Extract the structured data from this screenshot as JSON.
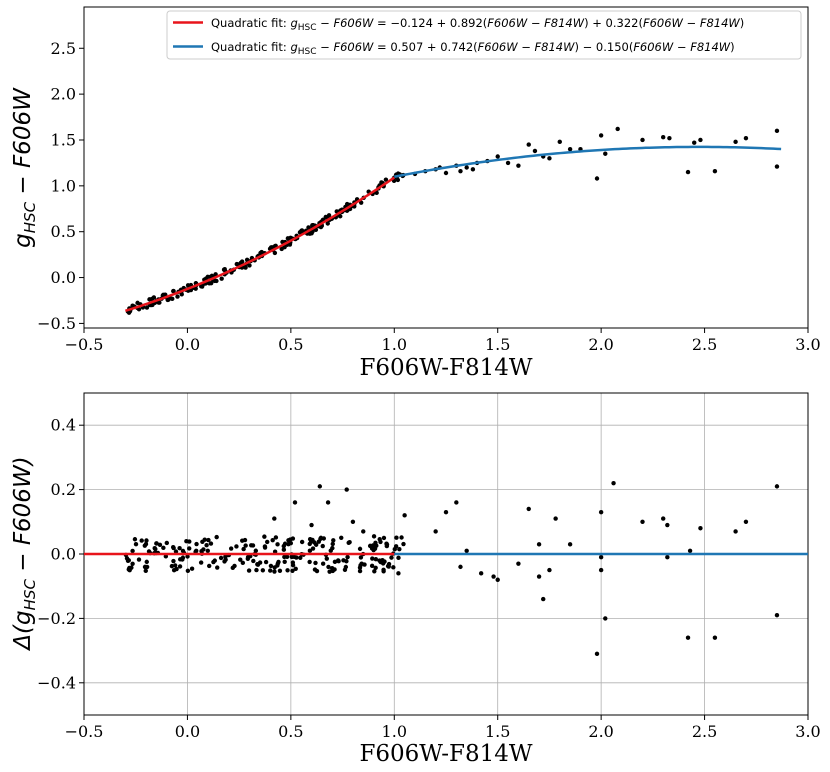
{
  "chart_data": [
    {
      "type": "scatter",
      "xlabel": "F606W-F814W",
      "ylabel": "g_HSC − F606W",
      "xlim": [
        -0.5,
        3.0
      ],
      "ylim": [
        -0.55,
        2.95
      ],
      "xticks": [
        -0.5,
        0.0,
        0.5,
        1.0,
        1.5,
        2.0,
        2.5,
        3.0
      ],
      "xtick_labels": [
        "−0.5",
        "0.0",
        "0.5",
        "1.0",
        "1.5",
        "2.0",
        "2.5",
        "3.0"
      ],
      "yticks": [
        -0.5,
        0.0,
        0.5,
        1.0,
        1.5,
        2.0,
        2.5
      ],
      "ytick_labels": [
        "−0.5",
        "0.0",
        "0.5",
        "1.0",
        "1.5",
        "2.0",
        "2.5"
      ],
      "grid": false,
      "legend_position": "top-right",
      "series": [
        {
          "name": "Quadratic fit: g_HSC − F606W = −0.124 + 0.892(F606W − F814W) + 0.322(F606W − F814W)",
          "type": "line",
          "color": "#e8141b",
          "coefficients": [
            -0.124,
            0.892,
            0.322
          ],
          "x_range": [
            -0.3,
            1.0
          ]
        },
        {
          "name": "Quadratic fit: g_HSC − F606W = 0.507 + 0.742(F606W − F814W) − 0.150(F606W − F814W)",
          "type": "line",
          "color": "#1f77b4",
          "coefficients": [
            0.507,
            0.742,
            -0.15
          ],
          "x_range": [
            1.0,
            2.87
          ]
        },
        {
          "type": "scatter",
          "color": "#000000",
          "points": [
            [
              1.1,
              1.13
            ],
            [
              1.15,
              1.16
            ],
            [
              1.2,
              1.18
            ],
            [
              1.22,
              1.2
            ],
            [
              1.25,
              1.14
            ],
            [
              1.3,
              1.22
            ],
            [
              1.32,
              1.16
            ],
            [
              1.35,
              1.2
            ],
            [
              1.38,
              1.18
            ],
            [
              1.4,
              1.25
            ],
            [
              1.45,
              1.27
            ],
            [
              1.5,
              1.32
            ],
            [
              1.55,
              1.25
            ],
            [
              1.6,
              1.22
            ],
            [
              1.65,
              1.45
            ],
            [
              1.68,
              1.38
            ],
            [
              1.72,
              1.32
            ],
            [
              1.75,
              1.3
            ],
            [
              1.8,
              1.48
            ],
            [
              1.85,
              1.4
            ],
            [
              1.9,
              1.4
            ],
            [
              1.98,
              1.08
            ],
            [
              2.0,
              1.55
            ],
            [
              2.02,
              1.35
            ],
            [
              2.08,
              1.62
            ],
            [
              2.2,
              1.5
            ],
            [
              2.3,
              1.53
            ],
            [
              2.33,
              1.52
            ],
            [
              2.42,
              1.15
            ],
            [
              2.45,
              1.47
            ],
            [
              2.48,
              1.5
            ],
            [
              2.55,
              1.16
            ],
            [
              2.65,
              1.48
            ],
            [
              2.7,
              1.52
            ],
            [
              2.85,
              1.6
            ],
            [
              2.85,
              1.21
            ]
          ]
        }
      ]
    },
    {
      "type": "scatter",
      "xlabel": "F606W-F814W",
      "ylabel": "Δ(g_HSC − F606W)",
      "xlim": [
        -0.5,
        3.0
      ],
      "ylim": [
        -0.5,
        0.5
      ],
      "xticks": [
        -0.5,
        0.0,
        0.5,
        1.0,
        1.5,
        2.0,
        2.5,
        3.0
      ],
      "xtick_labels": [
        "−0.5",
        "0.0",
        "0.5",
        "1.0",
        "1.5",
        "2.0",
        "2.5",
        "3.0"
      ],
      "yticks": [
        -0.4,
        -0.2,
        0.0,
        0.2,
        0.4
      ],
      "ytick_labels": [
        "−0.4",
        "−0.2",
        "0.0",
        "0.2",
        "0.4"
      ],
      "grid": true,
      "series": [
        {
          "type": "line",
          "color": "#e8141b",
          "x": [
            -0.5,
            1.0
          ],
          "y": [
            0.0,
            0.0
          ]
        },
        {
          "type": "line",
          "color": "#1f77b4",
          "x": [
            1.0,
            3.0
          ],
          "y": [
            0.0,
            0.0
          ]
        },
        {
          "type": "scatter",
          "color": "#000000",
          "points": [
            [
              0.42,
              0.11
            ],
            [
              0.52,
              0.16
            ],
            [
              0.64,
              0.21
            ],
            [
              0.68,
              0.16
            ],
            [
              0.77,
              0.2
            ],
            [
              0.8,
              0.1
            ],
            [
              0.6,
              0.09
            ],
            [
              0.85,
              0.07
            ],
            [
              0.95,
              0.05
            ],
            [
              1.02,
              -0.06
            ],
            [
              1.05,
              0.12
            ],
            [
              1.2,
              0.07
            ],
            [
              1.25,
              0.13
            ],
            [
              1.3,
              0.16
            ],
            [
              1.32,
              -0.04
            ],
            [
              1.35,
              0.01
            ],
            [
              1.42,
              -0.06
            ],
            [
              1.48,
              -0.07
            ],
            [
              1.5,
              -0.08
            ],
            [
              1.6,
              -0.03
            ],
            [
              1.65,
              0.14
            ],
            [
              1.7,
              0.03
            ],
            [
              1.7,
              -0.07
            ],
            [
              1.72,
              -0.14
            ],
            [
              1.75,
              -0.05
            ],
            [
              1.78,
              0.11
            ],
            [
              1.85,
              0.03
            ],
            [
              1.98,
              -0.31
            ],
            [
              2.0,
              0.13
            ],
            [
              2.0,
              -0.05
            ],
            [
              2.02,
              -0.2
            ],
            [
              2.0,
              -0.01
            ],
            [
              2.06,
              0.22
            ],
            [
              2.2,
              0.1
            ],
            [
              2.3,
              0.11
            ],
            [
              2.32,
              0.09
            ],
            [
              2.32,
              -0.01
            ],
            [
              2.42,
              -0.26
            ],
            [
              2.43,
              0.01
            ],
            [
              2.48,
              0.08
            ],
            [
              2.55,
              -0.26
            ],
            [
              2.65,
              0.07
            ],
            [
              2.7,
              0.1
            ],
            [
              2.85,
              0.21
            ],
            [
              2.85,
              -0.19
            ]
          ]
        }
      ]
    }
  ]
}
